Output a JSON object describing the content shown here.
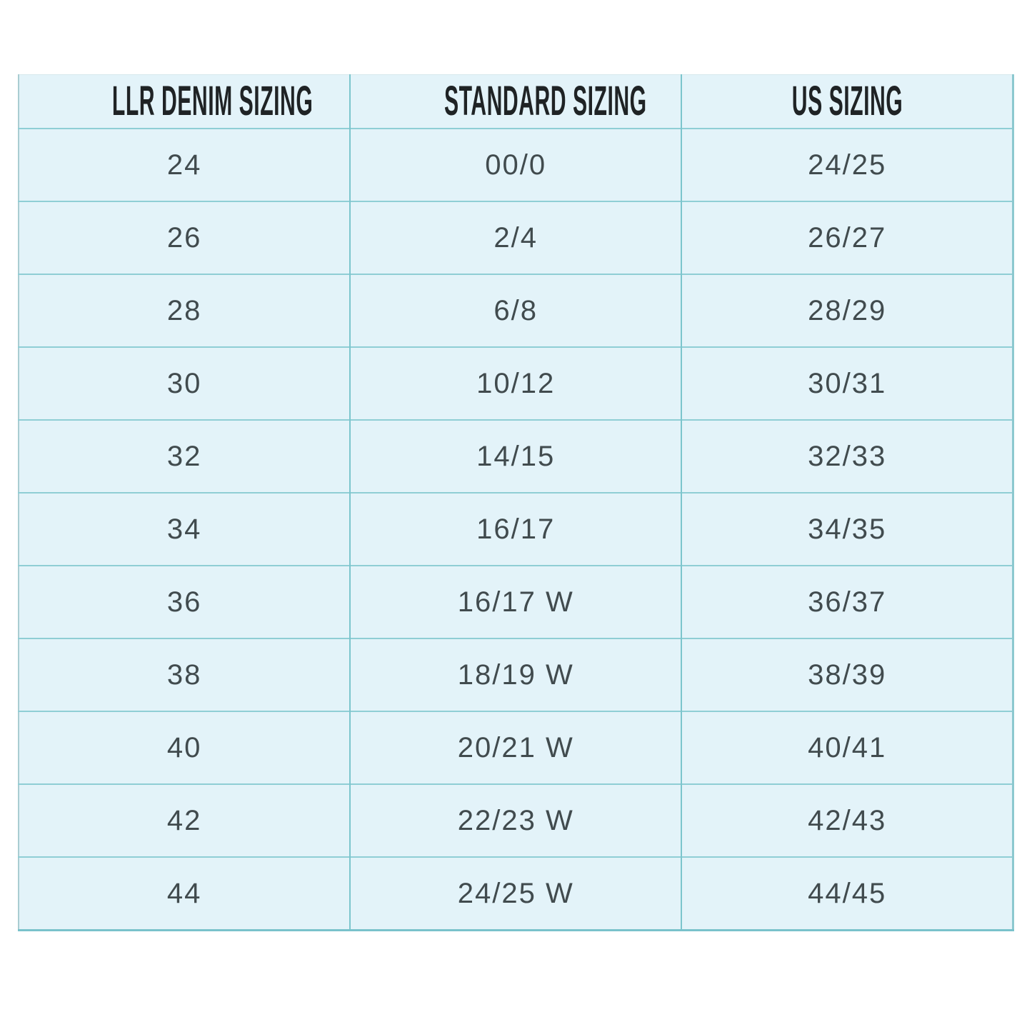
{
  "colors": {
    "cell_background": "#e3f3f9",
    "grid_line_vertical": "#7cc5cd",
    "grid_line_horizontal": "#8fced5",
    "outer_border": "#79c2cb",
    "header_text": "#1f2325",
    "body_text": "#414b4e",
    "page_background": "#ffffff"
  },
  "table": {
    "headers": [
      "LLR DENIM SIZING",
      "STANDARD SIZING",
      "US SIZING"
    ],
    "rows": [
      [
        "24",
        "00/0",
        "24/25"
      ],
      [
        "26",
        "2/4",
        "26/27"
      ],
      [
        "28",
        "6/8",
        "28/29"
      ],
      [
        "30",
        "10/12",
        "30/31"
      ],
      [
        "32",
        "14/15",
        "32/33"
      ],
      [
        "34",
        "16/17",
        "34/35"
      ],
      [
        "36",
        "16/17 W",
        "36/37"
      ],
      [
        "38",
        "18/19 W",
        "38/39"
      ],
      [
        "40",
        "20/21 W",
        "40/41"
      ],
      [
        "42",
        "22/23 W",
        "42/43"
      ],
      [
        "44",
        "24/25 W",
        "44/45"
      ]
    ]
  }
}
